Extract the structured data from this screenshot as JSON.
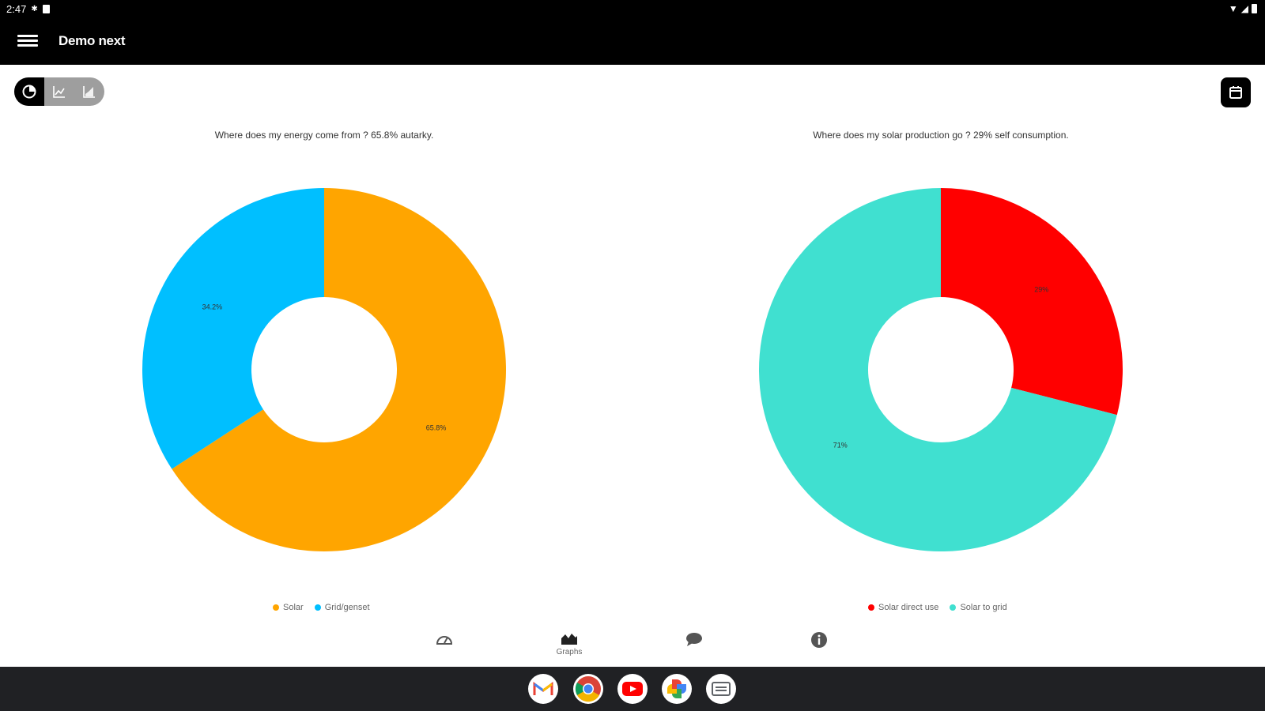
{
  "status_bar": {
    "time": "2:47"
  },
  "app_bar": {
    "title": "Demo next"
  },
  "view_toggle": {
    "selected": "pie"
  },
  "charts": [
    {
      "title": "Where does my energy come from ? 65.8% autarky.",
      "legend": [
        "Solar",
        "Grid/genset"
      ],
      "colors": [
        "#FFA500",
        "#00BFFF"
      ]
    },
    {
      "title": "Where does my solar production go ? 29% self consumption.",
      "legend": [
        "Solar direct use",
        "Solar to grid"
      ],
      "colors": [
        "#FF0000",
        "#40E0D0"
      ]
    }
  ],
  "chart_data": [
    {
      "type": "pie",
      "title": "Where does my energy come from ? 65.8% autarky.",
      "slices": [
        {
          "label": "Solar",
          "value": 65.8,
          "display": "65.8%",
          "color": "#FFA500"
        },
        {
          "label": "Grid/genset",
          "value": 34.2,
          "display": "34.2%",
          "color": "#00BFFF"
        }
      ],
      "start": "top",
      "direction": "clockwise",
      "legend_placement": "bottom",
      "donut": true
    },
    {
      "type": "pie",
      "title": "Where does my solar production go ? 29% self consumption.",
      "slices": [
        {
          "label": "Solar direct use",
          "value": 29,
          "display": "29%",
          "color": "#FF0000"
        },
        {
          "label": "Solar to grid",
          "value": 71,
          "display": "71%",
          "color": "#40E0D0"
        }
      ],
      "start": "top",
      "direction": "clockwise",
      "legend_placement": "bottom",
      "donut": true
    }
  ],
  "bottom_nav": {
    "items": [
      {
        "icon": "dashboard-icon",
        "label": ""
      },
      {
        "icon": "graphs-icon",
        "label": "Graphs"
      },
      {
        "icon": "chat-icon",
        "label": ""
      },
      {
        "icon": "info-icon",
        "label": ""
      }
    ]
  },
  "dock": {
    "apps": [
      "gmail-icon",
      "chrome-icon",
      "youtube-icon",
      "photos-icon",
      "messages-icon"
    ]
  }
}
